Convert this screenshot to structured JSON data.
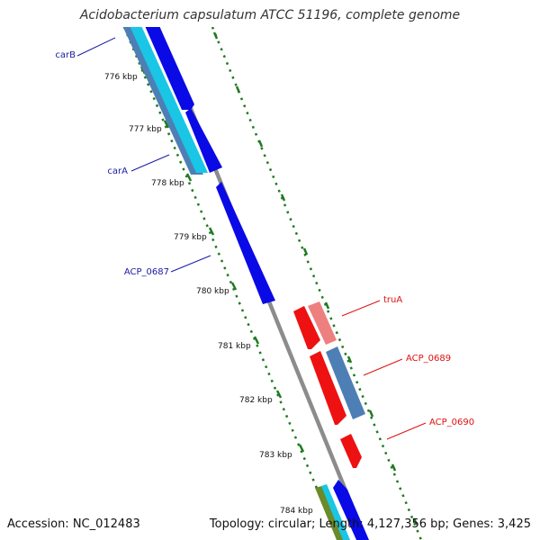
{
  "title": "Acidobacterium capsulatum ATCC 51196, complete genome",
  "footer": {
    "accession": "Accession: NC_012483",
    "summary": "Topology: circular; Length: 4,127,356 bp; Genes: 3,425"
  },
  "colors": {
    "backbone": "#8c8c8c",
    "ruler": "#1f7a1f",
    "forward_label": "#1a1aa6",
    "reverse_label": "#dd1111",
    "blue": "#0a0ae6",
    "cyan": "#19c6e6",
    "steel": "#4d7fb5",
    "red": "#ee1111",
    "pink": "#ee7f7f",
    "olive": "#6b8a2a"
  },
  "ruler": {
    "labels": [
      "776 kbp",
      "777 kbp",
      "778 kbp",
      "779 kbp",
      "780 kbp",
      "781 kbp",
      "782 kbp",
      "783 kbp",
      "784 kbp"
    ]
  },
  "gene_labels": [
    {
      "id": "carB",
      "text": "carB",
      "strand": "forward"
    },
    {
      "id": "carA",
      "text": "carA",
      "strand": "forward"
    },
    {
      "id": "acp0687",
      "text": "ACP_0687",
      "strand": "forward"
    },
    {
      "id": "truA",
      "text": "truA",
      "strand": "reverse"
    },
    {
      "id": "acp0689",
      "text": "ACP_0689",
      "strand": "reverse"
    },
    {
      "id": "acp0690",
      "text": "ACP_0690",
      "strand": "reverse"
    }
  ]
}
